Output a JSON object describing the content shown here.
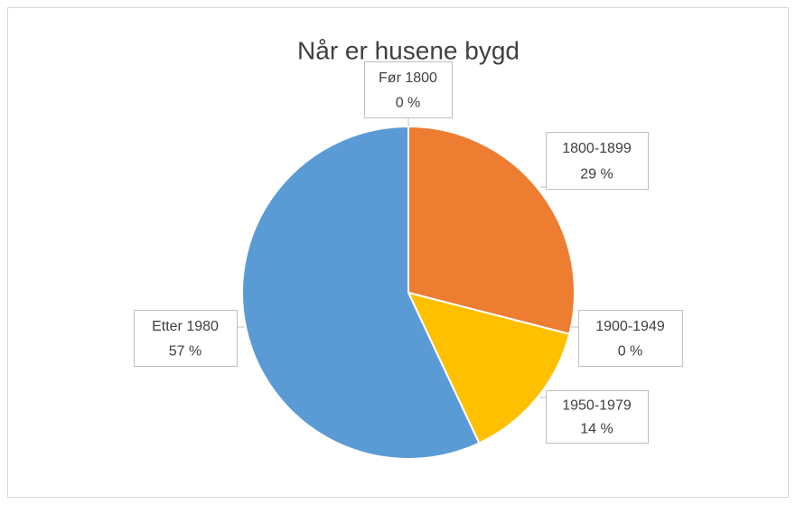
{
  "chart_data": {
    "type": "pie",
    "title": "Når er husene bygd",
    "categories": [
      "Før 1800",
      "1800-1899",
      "1900-1949",
      "1950-1979",
      "Etter 1980"
    ],
    "values": [
      0,
      29,
      0,
      14,
      57
    ],
    "value_labels": [
      "0 %",
      "29 %",
      "0 %",
      "14 %",
      "57 %"
    ],
    "colors": [
      "#5b9bd5",
      "#ed7d31",
      "#a5a5a5",
      "#ffc000",
      "#5b9bd5"
    ]
  }
}
